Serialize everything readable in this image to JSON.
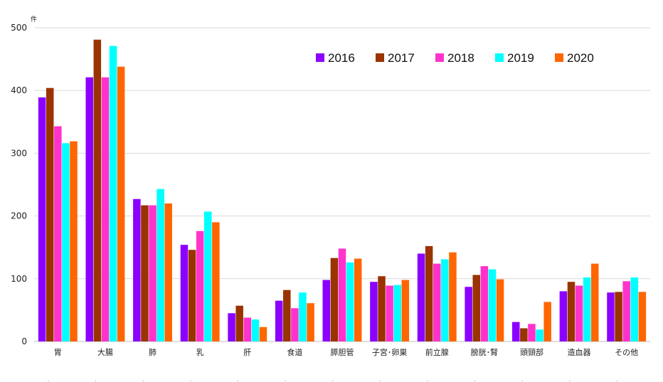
{
  "chart_data": {
    "type": "bar",
    "unit": "件",
    "categories": [
      "胃",
      "大腸",
      "肺",
      "乳",
      "肝",
      "食道",
      "膵胆管",
      "子宮･卵巣",
      "前立腺",
      "膀胱･腎",
      "頭頸部",
      "造血器",
      "その他"
    ],
    "series": [
      {
        "name": "2016",
        "color": "#8B00FF",
        "values": [
          389,
          421,
          227,
          154,
          45,
          65,
          98,
          95,
          140,
          87,
          31,
          80,
          78
        ]
      },
      {
        "name": "2017",
        "color": "#993300",
        "values": [
          404,
          481,
          217,
          146,
          57,
          82,
          133,
          104,
          152,
          106,
          21,
          95,
          79
        ]
      },
      {
        "name": "2018",
        "color": "#FF33CC",
        "values": [
          343,
          421,
          217,
          176,
          38,
          53,
          148,
          89,
          124,
          120,
          28,
          89,
          96
        ]
      },
      {
        "name": "2019",
        "color": "#00FFFF",
        "values": [
          316,
          471,
          243,
          207,
          35,
          78,
          126,
          90,
          131,
          115,
          19,
          102,
          102
        ]
      },
      {
        "name": "2020",
        "color": "#FF6600",
        "values": [
          319,
          438,
          220,
          190,
          23,
          61,
          132,
          98,
          142,
          99,
          63,
          124,
          79
        ]
      }
    ],
    "ylim": [
      0,
      500
    ],
    "yticks": [
      0,
      100,
      200,
      300,
      400,
      500
    ],
    "grid": true,
    "legend_position": "top-right"
  }
}
